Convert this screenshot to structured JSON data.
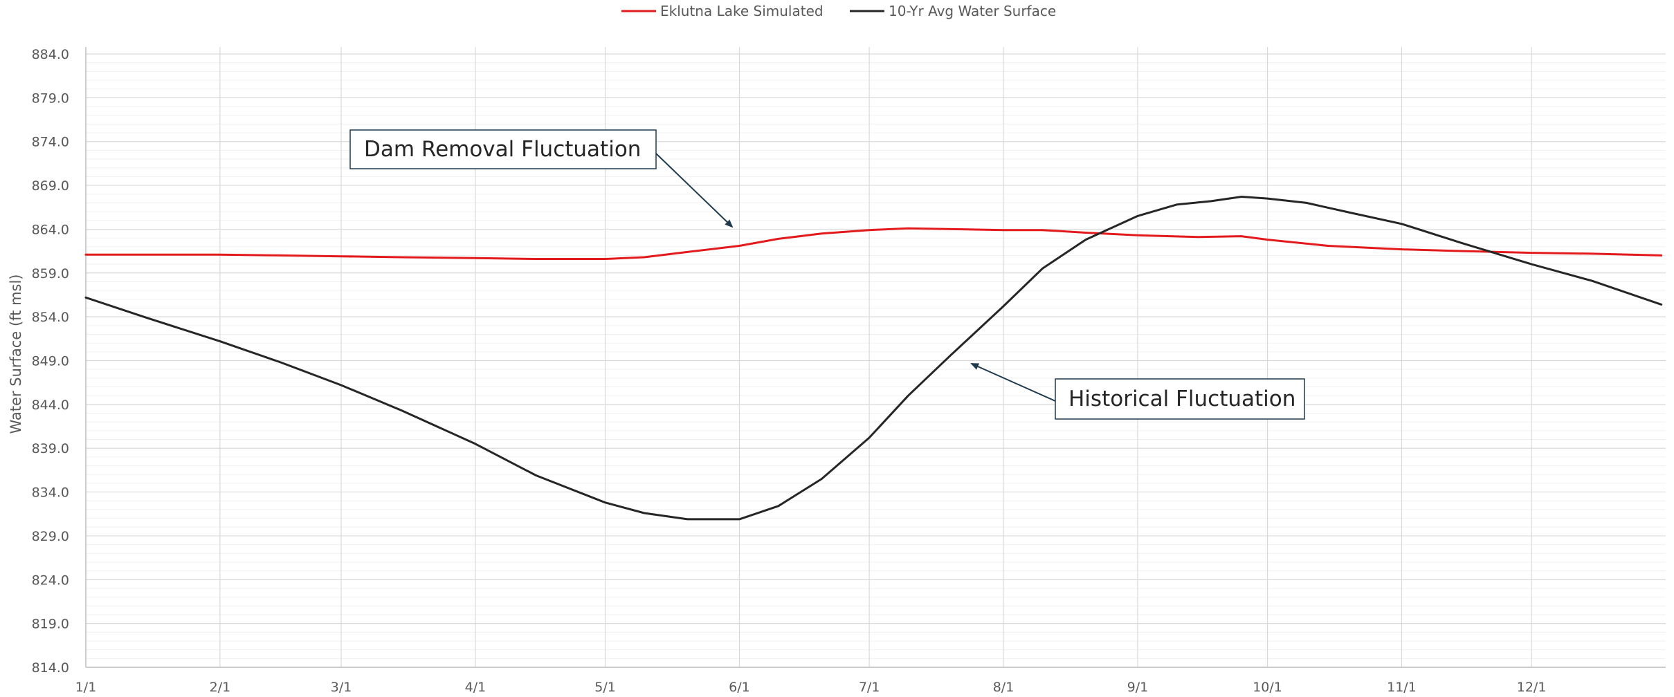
{
  "chart_data": {
    "type": "line",
    "title": "",
    "xlabel": "",
    "ylabel": "Water Surface (ft msl)",
    "x_ticks": [
      "1/1",
      "2/1",
      "3/1",
      "4/1",
      "5/1",
      "6/1",
      "7/1",
      "8/1",
      "9/1",
      "10/1",
      "11/1",
      "12/1"
    ],
    "x_tick_days": [
      1,
      32,
      60,
      91,
      121,
      152,
      182,
      213,
      244,
      274,
      305,
      335
    ],
    "xlim_days": [
      1,
      366
    ],
    "ylim": [
      814.0,
      884.0
    ],
    "y_ticks": [
      "814.0",
      "819.0",
      "824.0",
      "829.0",
      "834.0",
      "839.0",
      "844.0",
      "849.0",
      "854.0",
      "859.0",
      "864.0",
      "869.0",
      "874.0",
      "879.0",
      "884.0"
    ],
    "y_major_step": 5,
    "y_minor_step": 1,
    "grid": true,
    "legend_position": "top-center",
    "series": [
      {
        "name": "Eklutna Lake Simulated",
        "color": "#e31a1c",
        "points": [
          {
            "date": "1/1",
            "y": 861.1
          },
          {
            "date": "1/15",
            "y": 861.1
          },
          {
            "date": "2/1",
            "y": 861.1
          },
          {
            "date": "2/15",
            "y": 861.0
          },
          {
            "date": "3/1",
            "y": 860.9
          },
          {
            "date": "3/15",
            "y": 860.8
          },
          {
            "date": "4/1",
            "y": 860.7
          },
          {
            "date": "4/15",
            "y": 860.6
          },
          {
            "date": "5/1",
            "y": 860.6
          },
          {
            "date": "5/10",
            "y": 860.8
          },
          {
            "date": "5/20",
            "y": 861.4
          },
          {
            "date": "6/1",
            "y": 862.1
          },
          {
            "date": "6/10",
            "y": 862.9
          },
          {
            "date": "6/20",
            "y": 863.5
          },
          {
            "date": "7/1",
            "y": 863.9
          },
          {
            "date": "7/10",
            "y": 864.1
          },
          {
            "date": "7/20",
            "y": 864.0
          },
          {
            "date": "8/1",
            "y": 863.9
          },
          {
            "date": "8/10",
            "y": 863.9
          },
          {
            "date": "8/20",
            "y": 863.6
          },
          {
            "date": "9/1",
            "y": 863.3
          },
          {
            "date": "9/15",
            "y": 863.1
          },
          {
            "date": "9/25",
            "y": 863.2
          },
          {
            "date": "10/1",
            "y": 862.8
          },
          {
            "date": "10/15",
            "y": 862.1
          },
          {
            "date": "11/1",
            "y": 861.7
          },
          {
            "date": "11/15",
            "y": 861.5
          },
          {
            "date": "12/1",
            "y": 861.3
          },
          {
            "date": "12/15",
            "y": 861.2
          },
          {
            "date": "12/31",
            "y": 861.0
          }
        ]
      },
      {
        "name": "10-Yr Avg Water Surface",
        "color": "#262626",
        "points": [
          {
            "date": "1/1",
            "y": 856.2
          },
          {
            "date": "1/15",
            "y": 853.9
          },
          {
            "date": "2/1",
            "y": 851.2
          },
          {
            "date": "2/15",
            "y": 848.8
          },
          {
            "date": "3/1",
            "y": 846.2
          },
          {
            "date": "3/15",
            "y": 843.3
          },
          {
            "date": "4/1",
            "y": 839.5
          },
          {
            "date": "4/15",
            "y": 835.9
          },
          {
            "date": "5/1",
            "y": 832.8
          },
          {
            "date": "5/10",
            "y": 831.6
          },
          {
            "date": "5/20",
            "y": 830.9
          },
          {
            "date": "6/1",
            "y": 830.9
          },
          {
            "date": "6/10",
            "y": 832.4
          },
          {
            "date": "6/20",
            "y": 835.5
          },
          {
            "date": "7/1",
            "y": 840.2
          },
          {
            "date": "7/10",
            "y": 845.0
          },
          {
            "date": "7/20",
            "y": 849.7
          },
          {
            "date": "8/1",
            "y": 855.2
          },
          {
            "date": "8/10",
            "y": 859.5
          },
          {
            "date": "8/20",
            "y": 862.8
          },
          {
            "date": "9/1",
            "y": 865.5
          },
          {
            "date": "9/10",
            "y": 866.8
          },
          {
            "date": "9/18",
            "y": 867.2
          },
          {
            "date": "9/25",
            "y": 867.7
          },
          {
            "date": "10/1",
            "y": 867.5
          },
          {
            "date": "10/10",
            "y": 867.0
          },
          {
            "date": "10/20",
            "y": 865.9
          },
          {
            "date": "11/1",
            "y": 864.6
          },
          {
            "date": "11/15",
            "y": 862.4
          },
          {
            "date": "12/1",
            "y": 860.0
          },
          {
            "date": "12/15",
            "y": 858.1
          },
          {
            "date": "12/31",
            "y": 855.4
          }
        ]
      }
    ],
    "annotations": [
      {
        "text": "Dam Removal Fluctuation",
        "arrow_date": "6/1",
        "arrow_y": 864.2
      },
      {
        "text": "Historical Fluctuation",
        "arrow_date": "7/28",
        "arrow_y": 849.0
      }
    ]
  }
}
